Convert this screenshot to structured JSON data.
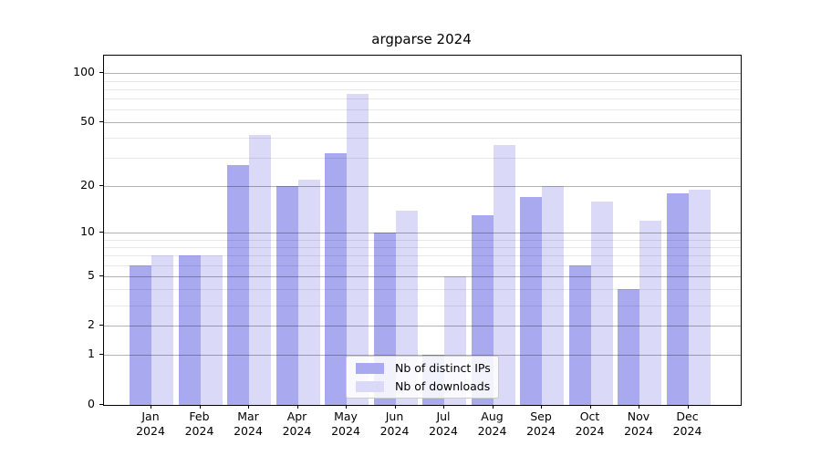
{
  "title": "argparse 2024",
  "colors": {
    "ips_bar": "#a9a9f0",
    "downloads_bar": "#dadaf8",
    "grid_major": "#b0b0b0",
    "grid_minor": "#e9e9e9",
    "axis": "#000000",
    "legend_border": "#cccccc",
    "background": "#ffffff"
  },
  "legend": {
    "entries": [
      {
        "label": "Nb of distinct IPs",
        "color": "#a9a9f0"
      },
      {
        "label": "Nb of downloads",
        "color": "#dadaf8"
      }
    ]
  },
  "chart_data": {
    "type": "bar",
    "title": "argparse 2024",
    "categories": [
      "Jan",
      "Feb",
      "Mar",
      "Apr",
      "May",
      "Jun",
      "Jul",
      "Aug",
      "Sep",
      "Oct",
      "Nov",
      "Dec"
    ],
    "year": "2024",
    "series": [
      {
        "name": "Nb of distinct IPs",
        "color": "#a9a9f0",
        "values": [
          6,
          7,
          27,
          20,
          32,
          10,
          1,
          13,
          17,
          6,
          4,
          18
        ]
      },
      {
        "name": "Nb of downloads",
        "color": "#dadaf8",
        "values": [
          7,
          7,
          42,
          22,
          75,
          14,
          5,
          36,
          20,
          16,
          12,
          19
        ]
      }
    ],
    "xlabel": "",
    "ylabel": "",
    "yscale": "log1p",
    "ylim": [
      0,
      128
    ],
    "yticks": [
      0,
      1,
      2,
      5,
      10,
      20,
      50,
      100
    ],
    "yticks_minor": [
      3,
      4,
      6,
      7,
      8,
      9,
      30,
      40,
      60,
      70,
      80,
      90
    ],
    "grid": true,
    "legend_position": "lower center"
  }
}
